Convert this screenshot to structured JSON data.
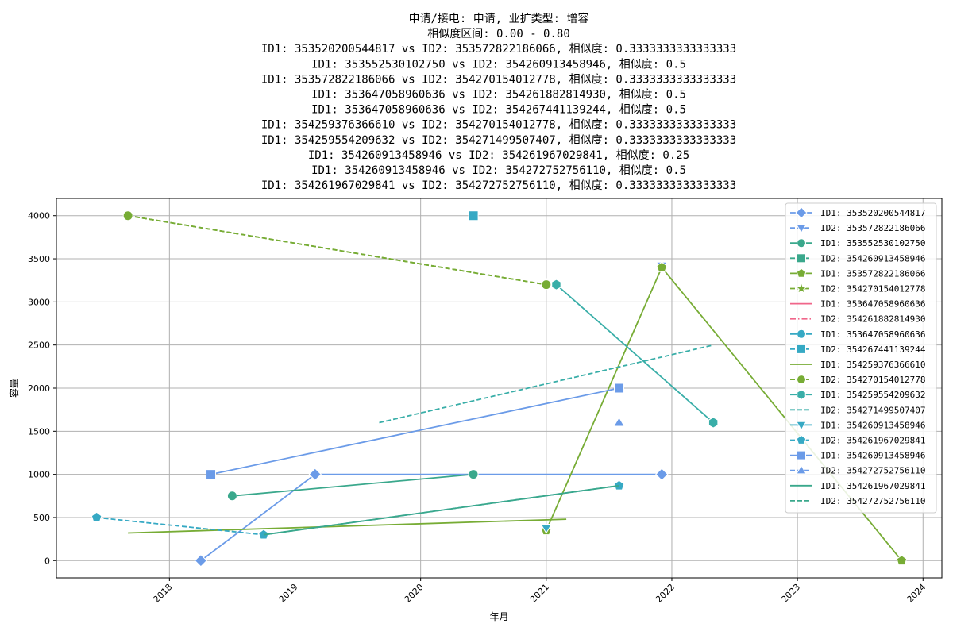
{
  "chart_data": {
    "type": "line",
    "title_lines": [
      "申请/接电: 申请, 业扩类型: 增容",
      "相似度区间: 0.00 - 0.80",
      "ID1: 353520200544817 vs ID2: 353572822186066, 相似度: 0.3333333333333333",
      "ID1: 353552530102750 vs ID2: 354260913458946, 相似度: 0.5",
      "ID1: 353572822186066 vs ID2: 354270154012778, 相似度: 0.3333333333333333",
      "ID1: 353647058960636 vs ID2: 354261882814930, 相似度: 0.5",
      "ID1: 353647058960636 vs ID2: 354267441139244, 相似度: 0.5",
      "ID1: 354259376366610 vs ID2: 354270154012778, 相似度: 0.3333333333333333",
      "ID1: 354259554209632 vs ID2: 354271499507407, 相似度: 0.3333333333333333",
      "ID1: 354260913458946 vs ID2: 354261967029841, 相似度: 0.25",
      "ID1: 354260913458946 vs ID2: 354272752756110, 相似度: 0.5",
      "ID1: 354261967029841 vs ID2: 354272752756110, 相似度: 0.3333333333333333"
    ],
    "xlabel": "年月",
    "ylabel": "容量",
    "xlim": [
      2017.1,
      2024.15
    ],
    "ylim": [
      -200,
      4200
    ],
    "xticks": [
      2018,
      2019,
      2020,
      2021,
      2022,
      2023,
      2024
    ],
    "yticks": [
      0,
      500,
      1000,
      1500,
      2000,
      2500,
      3000,
      3500,
      4000
    ],
    "grid": true,
    "legend_position": "top-right",
    "series": [
      {
        "name": "ID1: 353520200544817",
        "color": "#6b9be8",
        "marker": "diamond",
        "dash": "solid",
        "x": [
          2018.25,
          2019.16,
          2021.92
        ],
        "y": [
          0,
          1000,
          1000
        ]
      },
      {
        "name": "ID2: 353572822186066",
        "color": "#6b9be8",
        "marker": "triangle-down",
        "dash": "dashed",
        "x": [
          2021.92
        ],
        "y": [
          3420
        ]
      },
      {
        "name": "ID1: 353552530102750",
        "color": "#3aa88c",
        "marker": "circle",
        "dash": "solid",
        "x": [
          2018.5,
          2020.42
        ],
        "y": [
          750,
          1000
        ]
      },
      {
        "name": "ID2: 354260913458946",
        "color": "#3aa88c",
        "marker": "square",
        "dash": "dashed",
        "x": [],
        "y": []
      },
      {
        "name": "ID1: 353572822186066",
        "color": "#77ac35",
        "marker": "pentagon",
        "dash": "solid",
        "x": [
          2021.0,
          2021.92,
          2023.83
        ],
        "y": [
          350,
          3400,
          0
        ]
      },
      {
        "name": "ID2: 354270154012778",
        "color": "#77ac35",
        "marker": "star",
        "dash": "dashed",
        "x": [
          2017.67,
          2021.0
        ],
        "y": [
          4000,
          3200
        ]
      },
      {
        "name": "ID1: 353647058960636",
        "color": "#f0668a",
        "marker": "none",
        "dash": "solid",
        "x": [],
        "y": []
      },
      {
        "name": "ID2: 354261882814930",
        "color": "#f0668a",
        "marker": "none",
        "dash": "dashdot",
        "x": [],
        "y": []
      },
      {
        "name": "ID1: 353647058960636",
        "color": "#36a9c4",
        "marker": "circle",
        "dash": "solid",
        "x": [],
        "y": []
      },
      {
        "name": "ID2: 354267441139244",
        "color": "#36a9c4",
        "marker": "square",
        "dash": "dashed",
        "x": [
          2020.42
        ],
        "y": [
          4000
        ]
      },
      {
        "name": "ID1: 354259376366610",
        "color": "#77ac35",
        "marker": "none",
        "dash": "solid",
        "x": [
          2017.67,
          2021.16
        ],
        "y": [
          320,
          480
        ]
      },
      {
        "name": "ID2: 354270154012778",
        "color": "#77ac35",
        "marker": "circle",
        "dash": "dashed",
        "x": [
          2017.67,
          2021.0
        ],
        "y": [
          4000,
          3200
        ]
      },
      {
        "name": "ID1: 354259554209632",
        "color": "#39aea8",
        "marker": "hexagon",
        "dash": "solid",
        "x": [
          2021.08,
          2022.33
        ],
        "y": [
          3200,
          1600
        ]
      },
      {
        "name": "ID2: 354271499507407",
        "color": "#39aea8",
        "marker": "none",
        "dash": "dashed",
        "x": [
          2019.67,
          2022.33
        ],
        "y": [
          1600,
          2500
        ]
      },
      {
        "name": "ID1: 354260913458946",
        "color": "#36a9c4",
        "marker": "triangle-down",
        "dash": "solid",
        "x": [
          2021.0
        ],
        "y": [
          380
        ]
      },
      {
        "name": "ID2: 354261967029841",
        "color": "#36a9c4",
        "marker": "pentagon",
        "dash": "dashed",
        "x": [
          2017.42,
          2018.75,
          2021.58
        ],
        "y": [
          500,
          300,
          870
        ]
      },
      {
        "name": "ID1: 354260913458946",
        "color": "#6b9be8",
        "marker": "square",
        "dash": "solid",
        "x": [
          2018.33,
          2021.58
        ],
        "y": [
          1000,
          2000
        ]
      },
      {
        "name": "ID2: 354272752756110",
        "color": "#6b9be8",
        "marker": "triangle-up",
        "dash": "dashed",
        "x": [
          2021.58
        ],
        "y": [
          1600
        ]
      },
      {
        "name": "ID1: 354261967029841",
        "color": "#3aa88c",
        "marker": "none",
        "dash": "solid",
        "x": [
          2018.75,
          2021.58
        ],
        "y": [
          300,
          870
        ]
      },
      {
        "name": "ID2: 354272752756110",
        "color": "#3aa88c",
        "marker": "none",
        "dash": "dashed",
        "x": [],
        "y": []
      }
    ]
  }
}
